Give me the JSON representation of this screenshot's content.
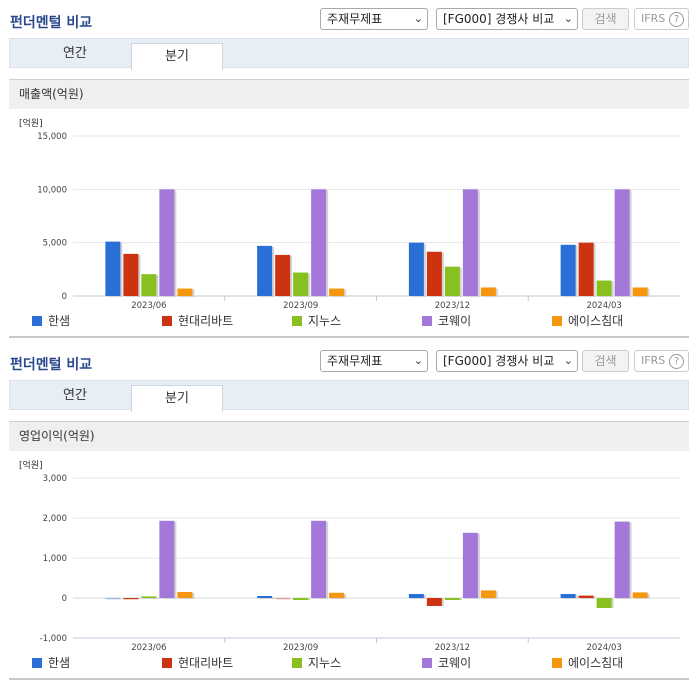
{
  "panels": [
    {
      "title": "펀더멘털 비교",
      "select1": "주재무제표",
      "select2": "[FG000] 경쟁사 비교",
      "search_label": "검색",
      "ifrs_label": "IFRS",
      "tabs": [
        "연간",
        "분기"
      ],
      "active_tab": 1,
      "chart_title": "매출액(억원)"
    },
    {
      "title": "펀더멘털 비교",
      "select1": "주재무제표",
      "select2": "[FG000] 경쟁사 비교",
      "search_label": "검색",
      "ifrs_label": "IFRS",
      "tabs": [
        "연간",
        "분기"
      ],
      "active_tab": 1,
      "chart_title": "영업이익(억원)"
    }
  ],
  "chart_data": [
    {
      "type": "bar",
      "unit_label": "[억원]",
      "categories": [
        "2023/06",
        "2023/09",
        "2023/12",
        "2024/03"
      ],
      "ylim": [
        0,
        15000
      ],
      "yticks": [
        0,
        5000,
        10000,
        15000
      ],
      "ytick_labels": [
        "0",
        "5,000",
        "10,000",
        "15,000"
      ],
      "series": [
        {
          "name": "한샘",
          "color": "#2a6fd6",
          "values": [
            5100,
            4700,
            5000,
            4800
          ]
        },
        {
          "name": "현대리바트",
          "color": "#cc3311",
          "values": [
            3950,
            3850,
            4150,
            5000
          ]
        },
        {
          "name": "지누스",
          "color": "#88c020",
          "values": [
            2050,
            2200,
            2750,
            1450
          ]
        },
        {
          "name": "코웨이",
          "color": "#a478d8",
          "values": [
            10000,
            10000,
            10000,
            10000
          ]
        },
        {
          "name": "에이스침대",
          "color": "#f5960f",
          "values": [
            700,
            700,
            800,
            800
          ]
        }
      ],
      "legend": "bottom"
    },
    {
      "type": "bar",
      "unit_label": "[억원]",
      "categories": [
        "2023/06",
        "2023/09",
        "2023/12",
        "2024/03"
      ],
      "ylim": [
        -1000,
        3000
      ],
      "yticks": [
        -1000,
        0,
        1000,
        2000,
        3000
      ],
      "ytick_labels": [
        "-1,000",
        "0",
        "1,000",
        "2,000",
        "3,000"
      ],
      "series": [
        {
          "name": "한샘",
          "color": "#2a6fd6",
          "values": [
            0,
            50,
            100,
            100
          ]
        },
        {
          "name": "현대리바트",
          "color": "#cc3311",
          "values": [
            -30,
            0,
            -200,
            60
          ]
        },
        {
          "name": "지누스",
          "color": "#88c020",
          "values": [
            40,
            -50,
            -50,
            -250
          ]
        },
        {
          "name": "코웨이",
          "color": "#a478d8",
          "values": [
            1930,
            1930,
            1630,
            1910
          ]
        },
        {
          "name": "에이스침대",
          "color": "#f5960f",
          "values": [
            150,
            130,
            190,
            140
          ]
        }
      ],
      "legend": "bottom"
    }
  ]
}
